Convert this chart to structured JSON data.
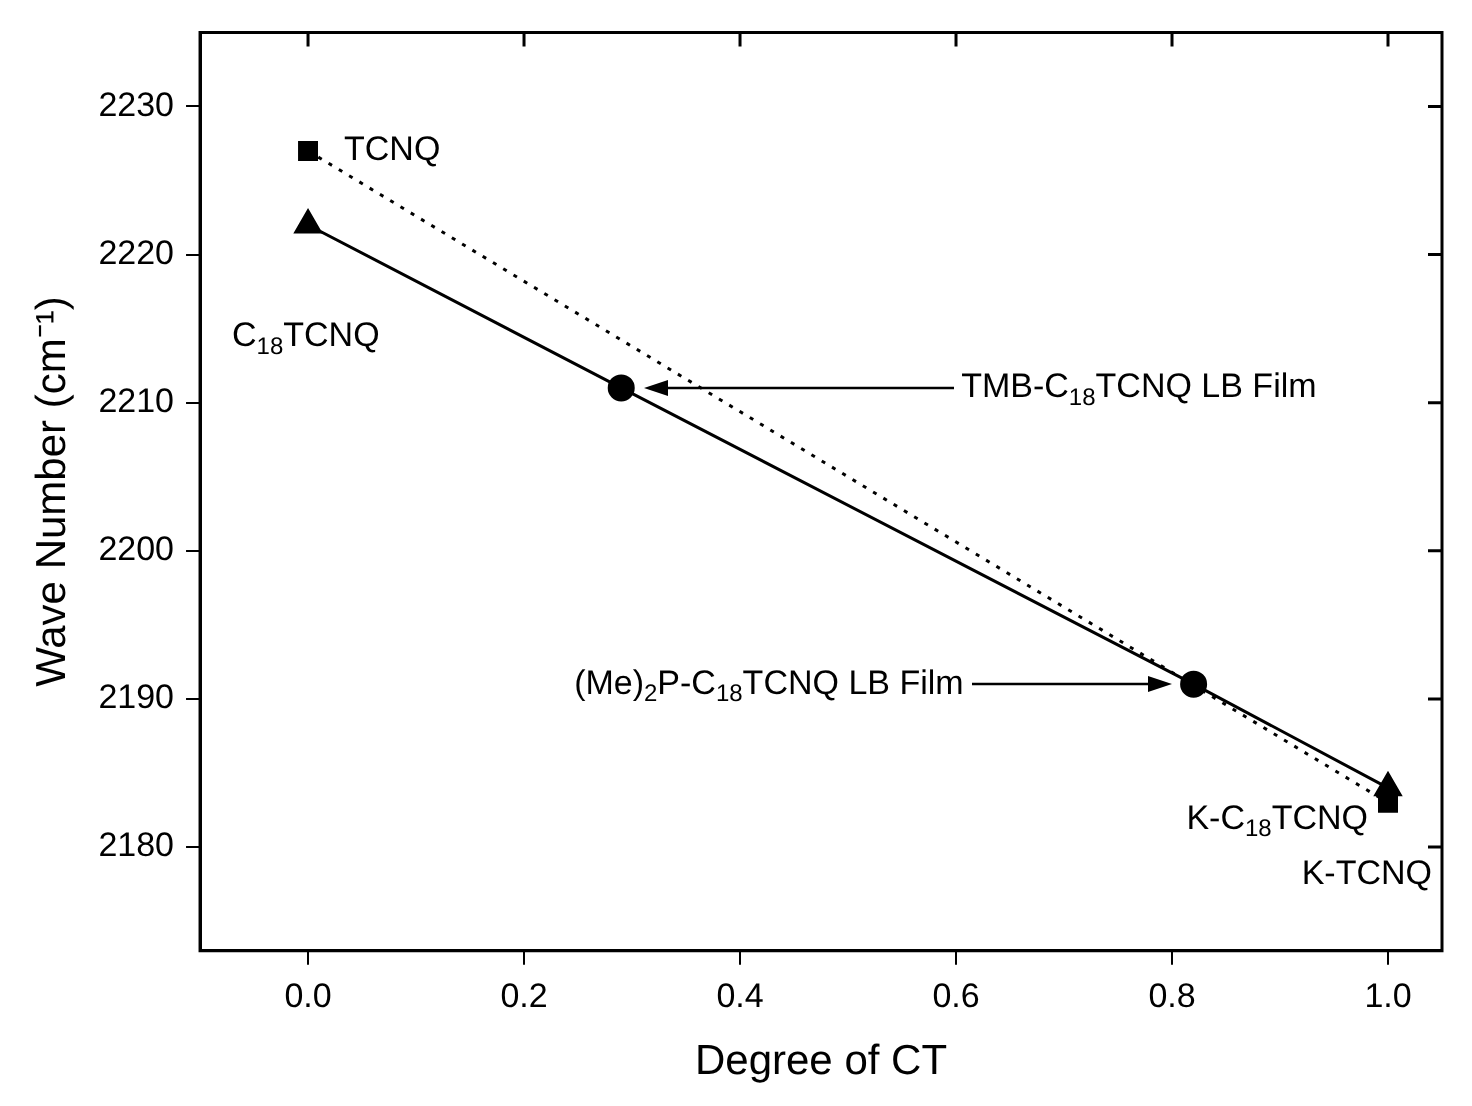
{
  "chart_data": {
    "type": "line",
    "xlabel": "Degree of CT",
    "ylabel": "Wave Number (cm⁻¹)",
    "xlim": [
      -0.1,
      1.05
    ],
    "xticks": [
      {
        "value": 0,
        "label": "0.0"
      },
      {
        "value": 0.2,
        "label": "0.2"
      },
      {
        "value": 0.4,
        "label": "0.4"
      },
      {
        "value": 0.6,
        "label": "0.6"
      },
      {
        "value": 0.8,
        "label": "0.8"
      },
      {
        "value": 1,
        "label": "1.0"
      }
    ],
    "ylim": [
      2173,
      2235
    ],
    "yticks": [
      2180,
      2190,
      2200,
      2210,
      2220,
      2230
    ],
    "grid": false,
    "legend": false,
    "series": [
      {
        "type": "line",
        "color": "#000000",
        "x": [
          0,
          1
        ],
        "values": [
          2227,
          2183
        ],
        "marker": "square",
        "line_style": "dotted"
      },
      {
        "type": "line",
        "color": "#000000",
        "x": [
          0,
          0.29,
          0.82,
          1
        ],
        "values": [
          2222,
          2211,
          2191,
          2184
        ],
        "marker": "none",
        "line_style": "solid"
      },
      {
        "type": "scatter",
        "color": "#000000",
        "x": [
          0,
          1
        ],
        "values": [
          2222,
          2184
        ],
        "marker": "triangle"
      },
      {
        "type": "scatter",
        "color": "#000000",
        "x": [
          0.29,
          0.82
        ],
        "values": [
          2211,
          2191
        ],
        "marker": "circle"
      }
    ],
    "annotations": [
      "TCNQ",
      "C$_{18}$TCNQ",
      "TMB-C$_{18}$TCNQ LB Film",
      "(Me)$_{2}$P-C$_{18}$TCNQ LB Film",
      "K-C$_{18}$TCNQ",
      "K-TCNQ"
    ]
  }
}
